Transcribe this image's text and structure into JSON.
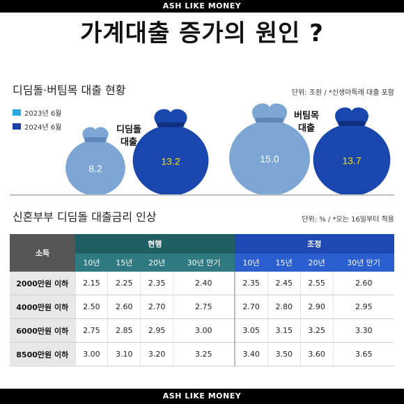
{
  "watermark_top": "ASH LIKE MONEY",
  "watermark_bottom": "ASH LIKE MONEY",
  "headline": "가계대출 증가의 원인 ?",
  "colors": {
    "y2023": "#2aa6e0",
    "y2024": "#1a3fa8",
    "bag_light": "#7da6d4",
    "bag_dark": "#1a47ad",
    "value_dark": "#ffe000"
  },
  "chart_data": [
    {
      "type": "bar",
      "title": "디딤돌·버팀목 대출 현황",
      "unit_note": "단위: 조원 / *신생아특례 대출 포함",
      "categories": [
        "디딤돌\n대출",
        "버팀목\n대출"
      ],
      "category_labels": [
        [
          "디딤돌",
          "대출"
        ],
        [
          "버팀목",
          "대출"
        ]
      ],
      "series": [
        {
          "name": "2023년 6월",
          "values": [
            8.2,
            15.0
          ]
        },
        {
          "name": "2024년 6월",
          "values": [
            13.2,
            13.7
          ]
        }
      ],
      "value_labels": [
        "8.2",
        "13.2",
        "15.0",
        "13.7"
      ],
      "legend_position": "top-left"
    },
    {
      "type": "table",
      "title": "신혼부부 디딤돌 대출금리 인상",
      "unit_note": "단위: % / *오는 16일부터 적용",
      "row_header": "소득",
      "groups": [
        "현행",
        "조정"
      ],
      "terms": [
        "10년",
        "15년",
        "20년",
        "30년 만기"
      ],
      "rows": [
        {
          "label": "2000만원 이하",
          "current": [
            "2.15",
            "2.25",
            "2.35",
            "2.40"
          ],
          "adjusted": [
            "2.35",
            "2.45",
            "2.55",
            "2.60"
          ]
        },
        {
          "label": "4000만원 이하",
          "current": [
            "2.50",
            "2.60",
            "2.70",
            "2.75"
          ],
          "adjusted": [
            "2.70",
            "2.80",
            "2.90",
            "2.95"
          ]
        },
        {
          "label": "6000만원 이하",
          "current": [
            "2.75",
            "2.85",
            "2.95",
            "3.00"
          ],
          "adjusted": [
            "3.05",
            "3.15",
            "3.25",
            "3.30"
          ]
        },
        {
          "label": "8500만원 이하",
          "current": [
            "3.00",
            "3.10",
            "3.20",
            "3.25"
          ],
          "adjusted": [
            "3.40",
            "3.50",
            "3.60",
            "3.65"
          ]
        }
      ]
    }
  ]
}
